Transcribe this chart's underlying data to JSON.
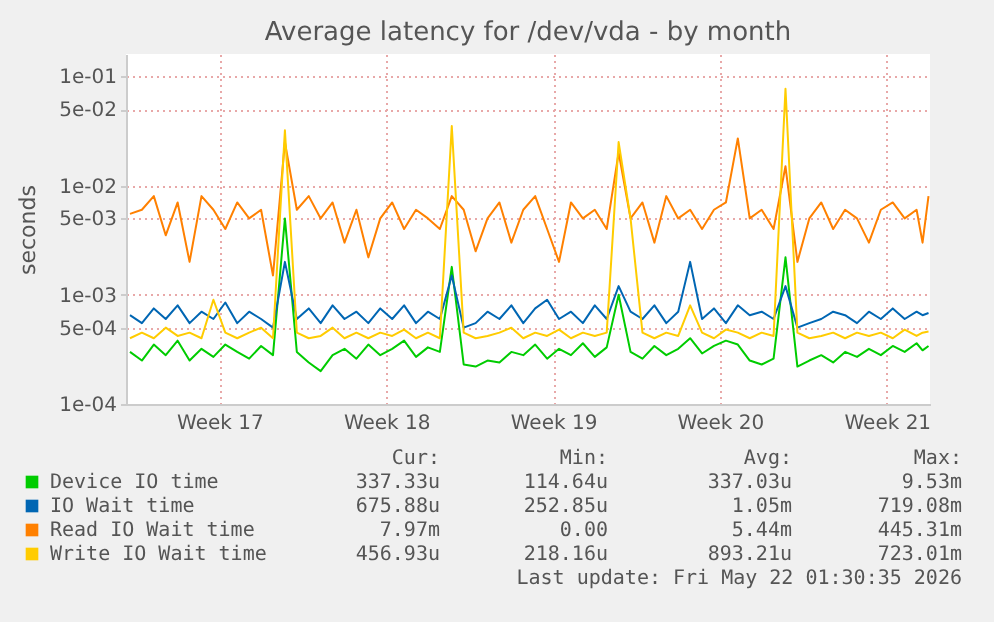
{
  "chart_data": {
    "type": "line",
    "title": "Average latency for /dev/vda - by month",
    "ylabel": "seconds",
    "log": "y",
    "grid": true,
    "legend": "bottom",
    "line_style": "solid",
    "xlim": [
      "2026-04-18T08:00",
      "2026-05-22T01:30"
    ],
    "xticks": [
      {
        "value": "2026-04-22T06:00",
        "label": "Week 17"
      },
      {
        "value": "2026-04-29T06:00",
        "label": "Week 18"
      },
      {
        "value": "2026-05-06T06:00",
        "label": "Week 19"
      },
      {
        "value": "2026-05-13T06:00",
        "label": "Week 20"
      },
      {
        "value": "2026-05-20T06:00",
        "label": "Week 21"
      }
    ],
    "ylim": [
      0.0001,
      0.16
    ],
    "yticks": [
      {
        "value": 0.0001,
        "label": "1e-04"
      },
      {
        "value": 0.0005,
        "label": "5e-04"
      },
      {
        "value": 0.001,
        "label": "1e-03"
      },
      {
        "value": 0.005,
        "label": "5e-03"
      },
      {
        "value": 0.01,
        "label": "1e-02"
      },
      {
        "value": 0.05,
        "label": "5e-02"
      },
      {
        "value": 0.1,
        "label": "1e-01"
      }
    ],
    "x": [
      "2026-04-18T12:00",
      "2026-04-19T00:00",
      "2026-04-19T12:00",
      "2026-04-20T00:00",
      "2026-04-20T12:00",
      "2026-04-21T00:00",
      "2026-04-21T12:00",
      "2026-04-22T00:00",
      "2026-04-22T12:00",
      "2026-04-23T00:00",
      "2026-04-23T12:00",
      "2026-04-24T00:00",
      "2026-04-24T12:00",
      "2026-04-25T00:00",
      "2026-04-25T12:00",
      "2026-04-26T00:00",
      "2026-04-26T12:00",
      "2026-04-27T00:00",
      "2026-04-27T12:00",
      "2026-04-28T00:00",
      "2026-04-28T12:00",
      "2026-04-29T00:00",
      "2026-04-29T12:00",
      "2026-04-30T00:00",
      "2026-04-30T12:00",
      "2026-05-01T00:00",
      "2026-05-01T12:00",
      "2026-05-02T00:00",
      "2026-05-02T12:00",
      "2026-05-03T00:00",
      "2026-05-03T12:00",
      "2026-05-04T00:00",
      "2026-05-04T12:00",
      "2026-05-05T00:00",
      "2026-05-05T12:00",
      "2026-05-06T00:00",
      "2026-05-06T12:00",
      "2026-05-07T00:00",
      "2026-05-07T12:00",
      "2026-05-08T00:00",
      "2026-05-08T12:00",
      "2026-05-09T00:00",
      "2026-05-09T12:00",
      "2026-05-10T00:00",
      "2026-05-10T12:00",
      "2026-05-11T00:00",
      "2026-05-11T12:00",
      "2026-05-12T00:00",
      "2026-05-12T12:00",
      "2026-05-13T00:00",
      "2026-05-13T12:00",
      "2026-05-14T00:00",
      "2026-05-14T12:00",
      "2026-05-15T00:00",
      "2026-05-15T12:00",
      "2026-05-16T00:00",
      "2026-05-16T12:00",
      "2026-05-17T00:00",
      "2026-05-17T12:00",
      "2026-05-18T00:00",
      "2026-05-18T12:00",
      "2026-05-19T00:00",
      "2026-05-19T12:00",
      "2026-05-20T00:00",
      "2026-05-20T12:00",
      "2026-05-21T00:00",
      "2026-05-21T12:00",
      "2026-05-21T18:00",
      "2026-05-22T00:00"
    ],
    "series": [
      {
        "name": "Device IO time",
        "color": "#00cc00",
        "values": [
          0.0003,
          0.00025,
          0.00035,
          0.00028,
          0.00038,
          0.00025,
          0.00032,
          0.00027,
          0.00035,
          0.0003,
          0.00026,
          0.00034,
          0.00028,
          0.005,
          0.0003,
          0.00024,
          0.0002,
          0.00028,
          0.00032,
          0.00026,
          0.00035,
          0.00028,
          0.00032,
          0.00038,
          0.00027,
          0.00033,
          0.0003,
          0.0018,
          0.00023,
          0.00022,
          0.00025,
          0.00024,
          0.0003,
          0.00028,
          0.00035,
          0.00026,
          0.00032,
          0.00028,
          0.00036,
          0.00027,
          0.00033,
          0.001,
          0.0003,
          0.00026,
          0.00034,
          0.00028,
          0.00032,
          0.0004,
          0.00029,
          0.00034,
          0.00038,
          0.00035,
          0.00025,
          0.00023,
          0.00026,
          0.0022,
          0.00022,
          0.00025,
          0.00028,
          0.00024,
          0.0003,
          0.00027,
          0.00032,
          0.00028,
          0.00034,
          0.0003,
          0.00036,
          0.00031,
          0.00034
        ]
      },
      {
        "name": "IO Wait time",
        "color": "#0066b3",
        "values": [
          0.00065,
          0.00055,
          0.00075,
          0.0006,
          0.0008,
          0.00055,
          0.0007,
          0.0006,
          0.00085,
          0.00055,
          0.0007,
          0.0006,
          0.0005,
          0.002,
          0.0006,
          0.00075,
          0.00055,
          0.0008,
          0.0006,
          0.0007,
          0.00055,
          0.00075,
          0.0006,
          0.0008,
          0.00055,
          0.0007,
          0.0006,
          0.0015,
          0.0005,
          0.00055,
          0.0007,
          0.0006,
          0.0008,
          0.00055,
          0.00075,
          0.0009,
          0.0006,
          0.0007,
          0.00055,
          0.0008,
          0.0006,
          0.0012,
          0.0007,
          0.0006,
          0.0008,
          0.00055,
          0.0007,
          0.002,
          0.0006,
          0.00075,
          0.00055,
          0.0008,
          0.00065,
          0.0007,
          0.0006,
          0.0012,
          0.0005,
          0.00055,
          0.0006,
          0.0007,
          0.00065,
          0.00055,
          0.0007,
          0.0006,
          0.00075,
          0.0006,
          0.0007,
          0.00065,
          0.00068
        ]
      },
      {
        "name": "Read IO Wait time",
        "color": "#ff8000",
        "values": [
          0.0055,
          0.006,
          0.008,
          0.0035,
          0.007,
          0.002,
          0.008,
          0.006,
          0.004,
          0.007,
          0.005,
          0.006,
          0.0015,
          0.025,
          0.006,
          0.008,
          0.005,
          0.007,
          0.003,
          0.006,
          0.0022,
          0.005,
          0.007,
          0.004,
          0.006,
          0.005,
          0.004,
          0.008,
          0.006,
          0.0025,
          0.005,
          0.007,
          0.003,
          0.006,
          0.008,
          0.004,
          0.002,
          0.007,
          0.005,
          0.006,
          0.004,
          0.02,
          0.005,
          0.007,
          0.003,
          0.008,
          0.005,
          0.006,
          0.004,
          0.006,
          0.007,
          0.027,
          0.005,
          0.006,
          0.004,
          0.015,
          0.002,
          0.005,
          0.007,
          0.004,
          0.006,
          0.005,
          0.003,
          0.006,
          0.007,
          0.005,
          0.006,
          0.003,
          0.008
        ]
      },
      {
        "name": "Write IO Wait time",
        "color": "#ffcc00",
        "values": [
          0.0004,
          0.00045,
          0.0004,
          0.0005,
          0.00042,
          0.00045,
          0.0004,
          0.0009,
          0.00045,
          0.0004,
          0.00045,
          0.0005,
          0.0004,
          0.032,
          0.00045,
          0.0004,
          0.00042,
          0.0005,
          0.0004,
          0.00045,
          0.0004,
          0.00045,
          0.00042,
          0.00048,
          0.0004,
          0.00045,
          0.0004,
          0.035,
          0.00045,
          0.0004,
          0.00042,
          0.00045,
          0.0005,
          0.0004,
          0.00045,
          0.00042,
          0.00048,
          0.0004,
          0.00045,
          0.00042,
          0.00045,
          0.025,
          0.005,
          0.00045,
          0.0004,
          0.00045,
          0.00042,
          0.0008,
          0.00045,
          0.0004,
          0.00048,
          0.00045,
          0.0004,
          0.00045,
          0.00042,
          0.077,
          0.00045,
          0.0004,
          0.00042,
          0.00045,
          0.0004,
          0.00045,
          0.00042,
          0.00045,
          0.0004,
          0.00048,
          0.00042,
          0.00045,
          0.00046
        ]
      }
    ],
    "annotations": [
      "Cur:",
      "Min:",
      "Avg:",
      "Max:",
      "337.33u",
      "114.64u",
      "337.03u",
      "9.53m",
      "675.88u",
      "252.85u",
      "1.05m",
      "719.08m",
      "7.97m",
      "0.00",
      "5.44m",
      "445.31m",
      "456.93u",
      "218.16u",
      "893.21u",
      "723.01m",
      "Last update: Fri May 22 01:30:35 2026"
    ]
  }
}
